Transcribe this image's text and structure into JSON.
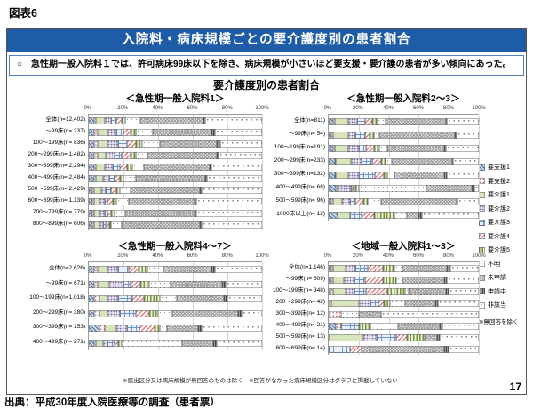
{
  "figure_label": "図表6",
  "header": {
    "title": "入院料・病床規模ごとの要介護度別の患者割合",
    "bg_color": "#1f5ca8",
    "text_color": "#ffffff"
  },
  "statement": "○　急性期一般入院料１では、許可病床99床以下を除き、病床規模が小さいほど要支援・要介護の患者が多い傾向にあった。",
  "page_number": "17",
  "source": "出典：平成30年度入院医療等の調査（患者票）",
  "chart_data": {
    "type": "bar",
    "stacked": true,
    "orientation": "horizontal",
    "main_title": "要介護度別の患者割合",
    "x_ticks": [
      "0%",
      "20%",
      "40%",
      "60%",
      "80%",
      "100%"
    ],
    "x_range": [
      0,
      100
    ],
    "grid": true,
    "legend_position": "right",
    "legend_note": "※無回答を除く",
    "footnote": "※届出区分又は病床規模が無回答のものは除く　※回答がなかった病床規模区分はグラフに掲載していない",
    "series_names": [
      "要支援1",
      "要支援2",
      "要介護1",
      "要介護2",
      "要介護3",
      "要介護4",
      "要介護5",
      "不明",
      "未申請",
      "申請中",
      "非該当"
    ],
    "charts": [
      {
        "title": "＜急性期一般入院料1＞",
        "rows": [
          {
            "label": "全体(n=12,402)",
            "values": [
              3,
              1,
              5,
              4,
              3,
              3,
              2,
              9,
              36,
              1,
              33
            ]
          },
          {
            "label": "～99床(n= 237)",
            "values": [
              3,
              2,
              6,
              5,
              4,
              4,
              3,
              10,
              34,
              2,
              27
            ]
          },
          {
            "label": "100～199床(n= 836)",
            "values": [
              3,
              2,
              6,
              6,
              5,
              5,
              4,
              10,
              33,
              2,
              24
            ]
          },
          {
            "label": "200～299床(n= 1,482)",
            "values": [
              3,
              2,
              5,
              5,
              4,
              5,
              3,
              7,
              40,
              1,
              25
            ]
          },
          {
            "label": "300～399床(n= 2,294)",
            "values": [
              3,
              1,
              5,
              5,
              4,
              4,
              3,
              7,
              38,
              1,
              29
            ]
          },
          {
            "label": "400～499床(n= 2,484)",
            "values": [
              3,
              1,
              4,
              4,
              3,
              3,
              2,
              7,
              40,
              1,
              32
            ]
          },
          {
            "label": "500～599床(n= 2,429)",
            "values": [
              2,
              1,
              4,
              3,
              3,
              3,
              2,
              6,
              40,
              1,
              35
            ]
          },
          {
            "label": "600～699床(n= 1,139)",
            "values": [
              2,
              1,
              3,
              3,
              2,
              3,
              2,
              7,
              38,
              1,
              38
            ]
          },
          {
            "label": "700～799床(n= 779)",
            "values": [
              2,
              1,
              3,
              3,
              2,
              2,
              2,
              6,
              40,
              1,
              38
            ]
          },
          {
            "label": "800～899床(n= 606)",
            "values": [
              2,
              1,
              3,
              2,
              2,
              2,
              1,
              6,
              45,
              1,
              35
            ]
          }
        ]
      },
      {
        "title": "＜急性期一般入院料2～3＞",
        "rows": [
          {
            "label": "全体(n=811)",
            "values": [
              3,
              1,
              9,
              6,
              5,
              5,
              3,
              6,
              40,
              1,
              21
            ]
          },
          {
            "label": "～99床(n= 54)",
            "values": [
              2,
              1,
              10,
              5,
              6,
              3,
              3,
              4,
              50,
              1,
              15
            ]
          },
          {
            "label": "100～199床(n=191)",
            "values": [
              3,
              1,
              9,
              7,
              5,
              5,
              4,
              5,
              38,
              1,
              22
            ]
          },
          {
            "label": "200～299床(n=233)",
            "values": [
              4,
              1,
              10,
              7,
              7,
              6,
              3,
              4,
              40,
              1,
              17
            ]
          },
          {
            "label": "300～399床(n=132)",
            "values": [
              4,
              1,
              8,
              7,
              11,
              6,
              2,
              5,
              33,
              2,
              21
            ]
          },
          {
            "label": "400～499床(n= 68)",
            "values": [
              5,
              0,
              1,
              9,
              1,
              2,
              2,
              45,
              30,
              2,
              3
            ]
          },
          {
            "label": "500～599床(n= 96)",
            "values": [
              2,
              1,
              6,
              5,
              4,
              5,
              3,
              9,
              50,
              1,
              14
            ]
          },
          {
            "label": "1000床以上(n= 12)",
            "values": [
              6,
              0,
              8,
              0,
              8,
              8,
              14,
              8,
              8,
              2,
              38
            ]
          }
        ]
      },
      {
        "title": "＜急性期一般入院料4～7＞",
        "rows": [
          {
            "label": "全体(n=2,626)",
            "values": [
              3,
              2,
              6,
              6,
              6,
              6,
              5,
              9,
              28,
              2,
              27
            ]
          },
          {
            "label": "～99床(n= 671)",
            "values": [
              3,
              2,
              7,
              8,
              4,
              6,
              5,
              12,
              30,
              2,
              21
            ]
          },
          {
            "label": "100～199床(n=1,018)",
            "values": [
              3,
              3,
              5,
              6,
              8,
              7,
              9,
              10,
              27,
              2,
              20
            ]
          },
          {
            "label": "200～299床(n= 380)",
            "values": [
              3,
              3,
              5,
              7,
              9,
              8,
              5,
              8,
              38,
              2,
              12
            ]
          },
          {
            "label": "300～399床(n= 153)",
            "values": [
              6,
              3,
              7,
              6,
              7,
              9,
              3,
              4,
              18,
              2,
              35
            ]
          },
          {
            "label": "400～499床(n= 271)",
            "values": [
              3,
              1,
              4,
              3,
              4,
              2,
              2,
              35,
              18,
              2,
              26
            ]
          }
        ]
      },
      {
        "title": "＜地域一般入院料1～3＞",
        "rows": [
          {
            "label": "全体(n=1,146)",
            "values": [
              2,
              1,
              8,
              7,
              8,
              10,
              8,
              5,
              30,
              2,
              19
            ]
          },
          {
            "label": "～99床(n= 609)",
            "values": [
              2,
              1,
              7,
              7,
              7,
              12,
              9,
              4,
              28,
              2,
              21
            ]
          },
          {
            "label": "100～199床(n= 348)",
            "values": [
              1,
              2,
              8,
              6,
              8,
              14,
              12,
              2,
              25,
              2,
              20
            ]
          },
          {
            "label": "200～299床(n= 42)",
            "values": [
              0,
              2,
              18,
              8,
              5,
              4,
              4,
              10,
              20,
              2,
              27
            ]
          },
          {
            "label": "300～399床(n= 12)",
            "values": [
              0,
              8,
              0,
              0,
              0,
              0,
              0,
              12,
              15,
              0,
              65
            ]
          },
          {
            "label": "400～499床(n= 21)",
            "values": [
              5,
              3,
              0,
              0,
              12,
              0,
              8,
              18,
              28,
              2,
              24
            ]
          },
          {
            "label": "500～599床(n= 13)",
            "values": [
              0,
              0,
              23,
              9,
              13,
              7,
              12,
              0,
              8,
              2,
              26
            ]
          },
          {
            "label": "600～699床(n= 14)",
            "values": [
              0,
              0,
              0,
              0,
              14,
              8,
              0,
              0,
              55,
              3,
              20
            ]
          }
        ]
      }
    ]
  }
}
